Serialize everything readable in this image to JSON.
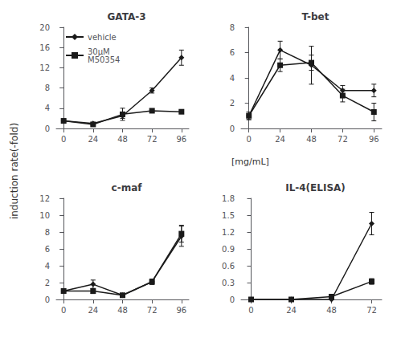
{
  "chart_data": [
    {
      "type": "line",
      "title": "GATA-3",
      "x": [
        0,
        24,
        48,
        72,
        96
      ],
      "series": [
        {
          "name": "vehicle",
          "color": "#1a1a1a",
          "marker": "diamond",
          "values": [
            1.5,
            1.0,
            2.5,
            7.5,
            14.0
          ],
          "errors": [
            0.3,
            0.2,
            0.5,
            0.5,
            1.5
          ]
        },
        {
          "name": "30μM\nM50354",
          "color": "#1a1a1a",
          "marker": "square",
          "values": [
            1.5,
            0.8,
            2.8,
            3.5,
            3.3
          ],
          "errors": [
            0.2,
            0.2,
            1.2,
            0.3,
            0.3
          ]
        }
      ],
      "xlim": [
        -6,
        102
      ],
      "xticks": [
        0,
        24,
        48,
        72,
        96
      ],
      "ylim": [
        0,
        20
      ],
      "yticks": [
        0,
        4,
        8,
        12,
        16,
        20
      ],
      "grid": false,
      "legend": "upper left",
      "ylabel": "induction rate(-fold)"
    },
    {
      "type": "line",
      "title": "T-bet",
      "x": [
        0,
        24,
        48,
        72,
        96
      ],
      "series": [
        {
          "name": "vehicle",
          "color": "#1a1a1a",
          "marker": "diamond",
          "values": [
            1.0,
            6.2,
            5.0,
            3.0,
            3.0
          ],
          "errors": [
            0.3,
            0.7,
            1.5,
            0.4,
            0.5
          ]
        },
        {
          "name": "30μM\nM50354",
          "color": "#1a1a1a",
          "marker": "square",
          "values": [
            1.0,
            5.0,
            5.2,
            2.6,
            1.3
          ],
          "errors": [
            0.3,
            0.5,
            0.6,
            0.5,
            0.7
          ]
        }
      ],
      "xlim": [
        -6,
        102
      ],
      "xticks": [
        0,
        24,
        48,
        72,
        96
      ],
      "ylim": [
        0,
        8
      ],
      "yticks": [
        0,
        2,
        4,
        6,
        8
      ],
      "grid": false,
      "annotations": [
        "[mg/mL]"
      ]
    },
    {
      "type": "line",
      "title": "c-maf",
      "x": [
        0,
        24,
        48,
        72,
        96
      ],
      "series": [
        {
          "name": "vehicle",
          "color": "#1a1a1a",
          "marker": "diamond",
          "values": [
            1.0,
            1.8,
            0.5,
            2.1,
            7.5
          ],
          "errors": [
            0.1,
            0.5,
            0.2,
            0.3,
            1.2
          ]
        },
        {
          "name": "30μM\nM50354",
          "color": "#1a1a1a",
          "marker": "square",
          "values": [
            1.0,
            1.0,
            0.5,
            2.1,
            7.8
          ],
          "errors": [
            0.1,
            0.3,
            0.2,
            0.3,
            1.0
          ]
        }
      ],
      "xlim": [
        -6,
        102
      ],
      "xticks": [
        0,
        24,
        48,
        72,
        96
      ],
      "ylim": [
        0,
        12
      ],
      "yticks": [
        0,
        2,
        4,
        6,
        8,
        10,
        12
      ],
      "grid": false
    },
    {
      "type": "line",
      "title": "IL-4(ELISA)",
      "x": [
        0,
        24,
        48,
        72
      ],
      "series": [
        {
          "name": "vehicle",
          "color": "#1a1a1a",
          "marker": "diamond",
          "values": [
            0.0,
            0.0,
            0.0,
            1.35
          ],
          "errors": [
            0.0,
            0.0,
            0.0,
            0.2
          ]
        },
        {
          "name": "30μM\nM50354",
          "color": "#1a1a1a",
          "marker": "square",
          "values": [
            0.0,
            0.0,
            0.05,
            0.32
          ],
          "errors": [
            0.0,
            0.0,
            0.02,
            0.05
          ]
        }
      ],
      "xlim": [
        -6,
        78
      ],
      "xticks": [
        0,
        24,
        48,
        72
      ],
      "ylim": [
        0,
        1.8
      ],
      "yticks": [
        0,
        0.3,
        0.6,
        0.9,
        1.2,
        1.5,
        1.8
      ],
      "grid": false
    }
  ]
}
